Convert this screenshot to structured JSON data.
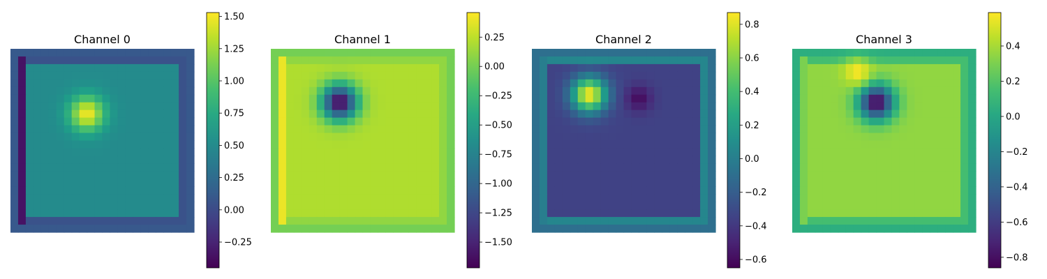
{
  "chart_data": [
    {
      "type": "heatmap",
      "title": "Channel 0",
      "colormap": "viridis",
      "grid": false,
      "axes": "off",
      "colorbar_range": [
        -0.45,
        1.53
      ],
      "colorbar_ticks": [
        -0.25,
        0.0,
        0.25,
        0.5,
        0.75,
        1.0,
        1.25,
        1.5
      ],
      "colorbar_tick_labels": [
        "−0.25",
        "0.00",
        "0.25",
        "0.50",
        "0.75",
        "1.00",
        "1.25",
        "1.50"
      ],
      "grid_size": [
        24,
        24
      ],
      "pattern": {
        "interior": 0.5,
        "frame": 0.05,
        "edge": 0.1,
        "left_column": -0.35,
        "blob_peak": 1.5,
        "blob_center": [
          9.5,
          8.0
        ]
      }
    },
    {
      "type": "heatmap",
      "title": "Channel 1",
      "colormap": "viridis",
      "grid": false,
      "axes": "off",
      "colorbar_range": [
        -1.72,
        0.46
      ],
      "colorbar_ticks": [
        -1.5,
        -1.25,
        -1.0,
        -0.75,
        -0.5,
        -0.25,
        0.0,
        0.25
      ],
      "colorbar_tick_labels": [
        "−1.50",
        "−1.25",
        "−1.00",
        "−0.75",
        "−0.50",
        "−0.25",
        "0.00",
        "0.25"
      ],
      "grid_size": [
        24,
        24
      ],
      "pattern": {
        "interior": 0.2,
        "frame": 0.1,
        "edge": 0.0,
        "left_column": 0.4,
        "blob_peak": -1.7,
        "blob_center": [
          8.5,
          6.5
        ]
      }
    },
    {
      "type": "heatmap",
      "title": "Channel 2",
      "colormap": "viridis",
      "grid": false,
      "axes": "off",
      "colorbar_range": [
        -0.65,
        0.87
      ],
      "colorbar_ticks": [
        -0.6,
        -0.4,
        -0.2,
        0.0,
        0.2,
        0.4,
        0.6,
        0.8
      ],
      "colorbar_tick_labels": [
        "−0.6",
        "−0.4",
        "−0.2",
        "0.0",
        "0.2",
        "0.4",
        "0.6",
        "0.8"
      ],
      "grid_size": [
        24,
        24
      ],
      "pattern": {
        "interior": -0.35,
        "frame": 0.05,
        "edge": -0.1,
        "left_column": 0.0,
        "blob_peak": 0.85,
        "blob_center": [
          7.0,
          5.5
        ],
        "second_blob_peak": -0.6,
        "second_blob_center": [
          13.5,
          6.0
        ]
      }
    },
    {
      "type": "heatmap",
      "title": "Channel 3",
      "colormap": "viridis",
      "grid": false,
      "axes": "off",
      "colorbar_range": [
        -0.86,
        0.59
      ],
      "colorbar_ticks": [
        -0.8,
        -0.6,
        -0.4,
        -0.2,
        0.0,
        0.2,
        0.4
      ],
      "colorbar_tick_labels": [
        "−0.8",
        "−0.6",
        "−0.4",
        "−0.2",
        "0.0",
        "0.2",
        "0.4"
      ],
      "grid_size": [
        24,
        24
      ],
      "pattern": {
        "interior": 0.35,
        "frame": 0.15,
        "edge": 0.05,
        "left_column": 0.3,
        "blob_peak": -0.85,
        "blob_center": [
          10.5,
          6.5
        ],
        "second_blob_peak": 0.58,
        "second_blob_center": [
          8.0,
          2.5
        ]
      }
    }
  ]
}
